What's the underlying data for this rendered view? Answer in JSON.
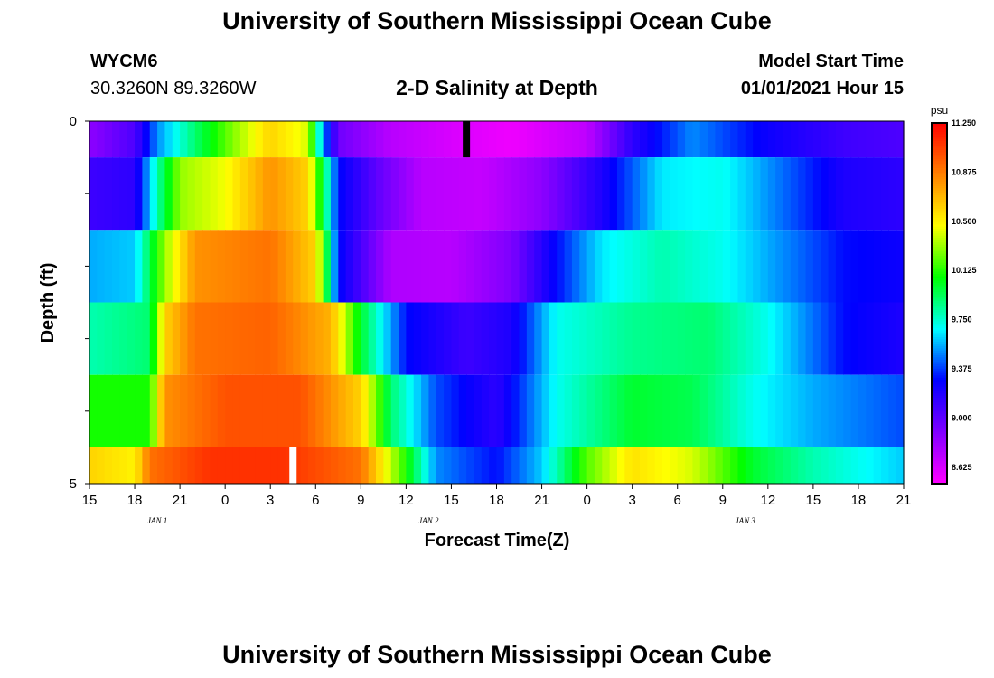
{
  "header": {
    "title": "University of Southern Mississippi Ocean Cube",
    "station": "WYCM6",
    "coords": "30.3260N 89.3260W",
    "plot_title": "2-D Salinity at Depth",
    "start_label": "Model Start Time",
    "start_time": "01/01/2021 Hour 15"
  },
  "footer": {
    "title": "University of Southern Mississippi Ocean Cube"
  },
  "chart_data": {
    "type": "heatmap",
    "title": "2-D Salinity at Depth",
    "xlabel": "Forecast Time(Z)",
    "ylabel": "Depth (ft)",
    "x_ticks": [
      "15",
      "18",
      "21",
      "0",
      "3",
      "6",
      "9",
      "12",
      "15",
      "18",
      "21",
      "0",
      "3",
      "6",
      "9",
      "12",
      "15",
      "18",
      "21"
    ],
    "date_labels": [
      {
        "label": "JAN 1",
        "after_tick_index": 1
      },
      {
        "label": "JAN 2",
        "after_tick_index": 7
      },
      {
        "label": "JAN 3",
        "after_tick_index": 14
      }
    ],
    "x_range_hours": [
      0,
      54
    ],
    "y_ticks": [
      "0",
      "5"
    ],
    "y_range_ft": [
      0,
      5
    ],
    "colorbar": {
      "unit": "psu",
      "min": 8.5,
      "max": 11.25,
      "ticks": [
        "11.250",
        "10.875",
        "10.500",
        "10.125",
        "9.750",
        "9.375",
        "9.000",
        "8.625"
      ],
      "colors": [
        "#ff00ff",
        "#8000ff",
        "#0000ff",
        "#00ffff",
        "#00ff00",
        "#ffff00",
        "#ff8000",
        "#ff0000"
      ]
    },
    "depth_layers_ft": [
      [
        0,
        0.5
      ],
      [
        0.5,
        1.5
      ],
      [
        1.5,
        2.5
      ],
      [
        2.5,
        3.5
      ],
      [
        3.5,
        4.5
      ],
      [
        4.5,
        5
      ]
    ],
    "profiles_hours": [
      [
        [
          0,
          8.85
        ],
        [
          3,
          9.05
        ],
        [
          4.5,
          9.5
        ],
        [
          7,
          9.9
        ],
        [
          9,
          10.2
        ],
        [
          12,
          10.6
        ],
        [
          14.5,
          10.4
        ],
        [
          15.5,
          9.5
        ],
        [
          16.5,
          8.95
        ],
        [
          20,
          8.72
        ],
        [
          24,
          8.62
        ],
        [
          28,
          8.55
        ],
        [
          33,
          8.7
        ],
        [
          36,
          9.15
        ],
        [
          40,
          9.5
        ],
        [
          45,
          9.25
        ],
        [
          50,
          9.1
        ],
        [
          54,
          9.05
        ]
      ],
      [
        [
          0,
          9.1
        ],
        [
          3,
          9.15
        ],
        [
          4.5,
          9.8
        ],
        [
          6,
          10.3
        ],
        [
          9,
          10.45
        ],
        [
          12,
          10.8
        ],
        [
          14.5,
          10.6
        ],
        [
          16.5,
          9.3
        ],
        [
          19,
          9.0
        ],
        [
          22,
          8.72
        ],
        [
          26,
          8.68
        ],
        [
          30,
          8.85
        ],
        [
          34,
          9.2
        ],
        [
          38,
          9.65
        ],
        [
          42,
          9.7
        ],
        [
          46,
          9.45
        ],
        [
          50,
          9.2
        ],
        [
          54,
          9.15
        ]
      ],
      [
        [
          0,
          9.55
        ],
        [
          3,
          9.6
        ],
        [
          5,
          10.3
        ],
        [
          7,
          10.8
        ],
        [
          12,
          10.9
        ],
        [
          15,
          10.6
        ],
        [
          16.5,
          9.3
        ],
        [
          20,
          8.75
        ],
        [
          24,
          8.72
        ],
        [
          28,
          8.9
        ],
        [
          31,
          9.3
        ],
        [
          34,
          9.65
        ],
        [
          38,
          9.8
        ],
        [
          42,
          9.7
        ],
        [
          46,
          9.5
        ],
        [
          50,
          9.3
        ],
        [
          54,
          9.25
        ]
      ],
      [
        [
          0,
          9.8
        ],
        [
          4,
          9.9
        ],
        [
          5,
          10.6
        ],
        [
          7,
          10.9
        ],
        [
          12,
          10.95
        ],
        [
          16,
          10.7
        ],
        [
          18,
          10.0
        ],
        [
          21,
          9.3
        ],
        [
          25,
          9.1
        ],
        [
          28,
          9.2
        ],
        [
          31,
          9.7
        ],
        [
          36,
          9.85
        ],
        [
          41,
          9.9
        ],
        [
          45,
          9.7
        ],
        [
          50,
          9.3
        ],
        [
          54,
          9.2
        ]
      ],
      [
        [
          0,
          10.1
        ],
        [
          4,
          10.1
        ],
        [
          5,
          10.8
        ],
        [
          9,
          11.0
        ],
        [
          14,
          11.0
        ],
        [
          18,
          10.6
        ],
        [
          20,
          9.9
        ],
        [
          23,
          9.4
        ],
        [
          27,
          9.15
        ],
        [
          31,
          9.7
        ],
        [
          36,
          10.0
        ],
        [
          40,
          9.95
        ],
        [
          44,
          9.7
        ],
        [
          48,
          9.55
        ],
        [
          54,
          9.4
        ]
      ],
      [
        [
          0,
          10.6
        ],
        [
          3,
          10.5
        ],
        [
          4,
          10.9
        ],
        [
          8,
          11.1
        ],
        [
          13,
          11.1
        ],
        [
          18,
          10.9
        ],
        [
          21,
          10.1
        ],
        [
          23,
          9.5
        ],
        [
          27,
          9.3
        ],
        [
          30,
          9.6
        ],
        [
          33,
          10.2
        ],
        [
          36,
          10.55
        ],
        [
          40,
          10.4
        ],
        [
          44,
          10.0
        ],
        [
          48,
          9.8
        ],
        [
          54,
          9.6
        ]
      ]
    ],
    "markers": [
      {
        "hour": 25,
        "depth_ft": [
          0,
          0.5
        ],
        "color": "#000000"
      },
      {
        "hour": 13.5,
        "depth_ft": [
          4.5,
          5
        ],
        "color": "#ffffff"
      }
    ]
  }
}
